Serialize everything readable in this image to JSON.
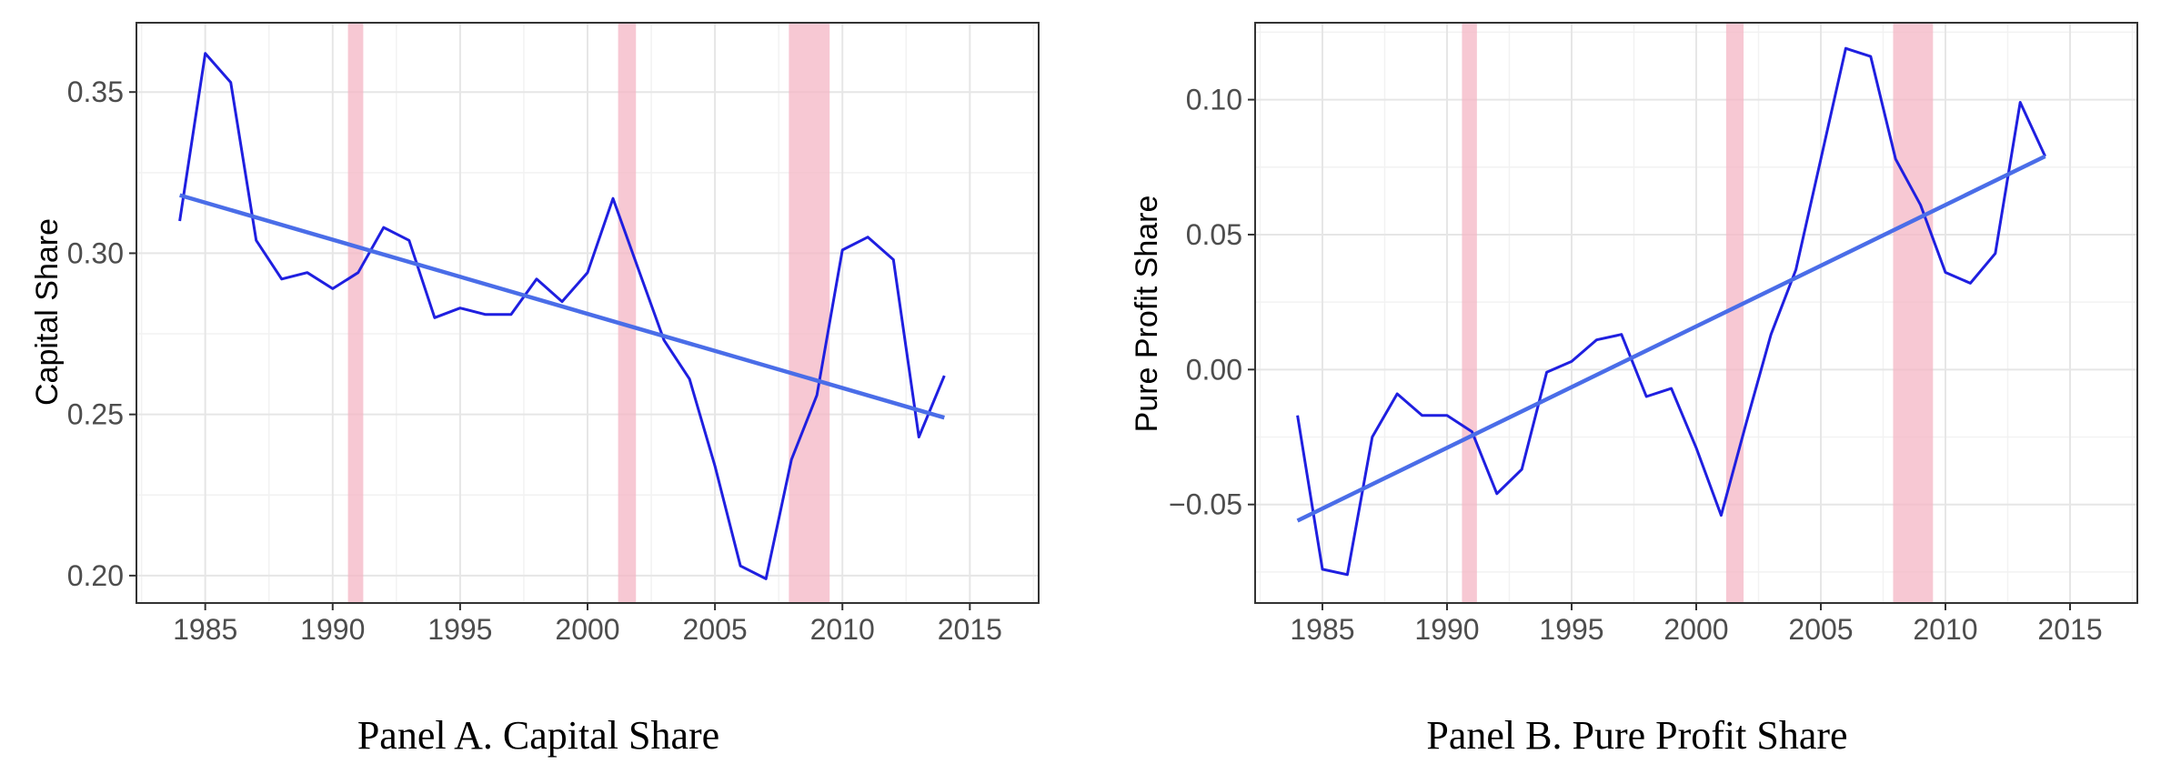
{
  "chart_data": [
    {
      "type": "line",
      "caption": "Panel A. Capital Share",
      "ylabel": "Capital Share",
      "xlabel": "",
      "xlim": [
        1982.3,
        2017.7
      ],
      "ylim": [
        0.1915,
        0.3715
      ],
      "x_ticks": [
        1985,
        1990,
        1995,
        2000,
        2005,
        2010,
        2015
      ],
      "x_tick_labels": [
        "1985",
        "1990",
        "1995",
        "2000",
        "2005",
        "2010",
        "2015"
      ],
      "y_ticks": [
        0.2,
        0.25,
        0.3,
        0.35
      ],
      "y_tick_labels": [
        "0.20",
        "0.25",
        "0.30",
        "0.35"
      ],
      "grid": true,
      "legend": "none",
      "recession_bands": [
        [
          1990.6,
          1991.2
        ],
        [
          2001.2,
          2001.9
        ],
        [
          2007.9,
          2009.5
        ]
      ],
      "series": [
        {
          "x": [
            1984,
            1985,
            1986,
            1987,
            1988,
            1989,
            1990,
            1991,
            1992,
            1993,
            1994,
            1995,
            1996,
            1997,
            1998,
            1999,
            2000,
            2001,
            2002,
            2003,
            2004,
            2005,
            2006,
            2007,
            2008,
            2009,
            2010,
            2011,
            2012,
            2013,
            2014
          ],
          "values": [
            0.31,
            0.362,
            0.353,
            0.304,
            0.292,
            0.294,
            0.289,
            0.294,
            0.308,
            0.304,
            0.28,
            0.283,
            0.281,
            0.281,
            0.292,
            0.285,
            0.294,
            0.317,
            0.295,
            0.273,
            0.261,
            0.234,
            0.203,
            0.199,
            0.236,
            0.256,
            0.301,
            0.305,
            0.298,
            0.243,
            0.262
          ]
        }
      ],
      "trend": {
        "x": [
          1984,
          2014
        ],
        "values": [
          0.318,
          0.249
        ]
      },
      "colors": {
        "series": "#1f1fe0",
        "trend": "#4a6de8",
        "band": "#f4b6c4",
        "grid": "#e6e6e6",
        "frame": "#333333"
      }
    },
    {
      "type": "line",
      "caption": "Panel B. Pure Profit Share",
      "ylabel": "Pure Profit Share",
      "xlabel": "",
      "xlim": [
        1982.3,
        2017.7
      ],
      "ylim": [
        -0.0865,
        0.1285
      ],
      "x_ticks": [
        1985,
        1990,
        1995,
        2000,
        2005,
        2010,
        2015
      ],
      "x_tick_labels": [
        "1985",
        "1990",
        "1995",
        "2000",
        "2005",
        "2010",
        "2015"
      ],
      "y_ticks": [
        -0.05,
        0.0,
        0.05,
        0.1
      ],
      "y_tick_labels": [
        "−0.05",
        "0.00",
        "0.05",
        "0.10"
      ],
      "grid": true,
      "legend": "none",
      "recession_bands": [
        [
          1990.6,
          1991.2
        ],
        [
          2001.2,
          2001.9
        ],
        [
          2007.9,
          2009.5
        ]
      ],
      "series": [
        {
          "x": [
            1984,
            1985,
            1986,
            1987,
            1988,
            1989,
            1990,
            1991,
            1992,
            1993,
            1994,
            1995,
            1996,
            1997,
            1998,
            1999,
            2000,
            2001,
            2002,
            2003,
            2004,
            2005,
            2006,
            2007,
            2008,
            2009,
            2010,
            2011,
            2012,
            2013,
            2014
          ],
          "values": [
            -0.017,
            -0.074,
            -0.076,
            -0.025,
            -0.009,
            -0.017,
            -0.017,
            -0.023,
            -0.046,
            -0.037,
            -0.001,
            0.003,
            0.011,
            0.013,
            -0.01,
            -0.007,
            -0.029,
            -0.054,
            -0.02,
            0.013,
            0.037,
            0.078,
            0.119,
            0.116,
            0.078,
            0.061,
            0.036,
            0.032,
            0.043,
            0.099,
            0.079
          ]
        }
      ],
      "trend": {
        "x": [
          1984,
          2014
        ],
        "values": [
          -0.056,
          0.079
        ]
      },
      "colors": {
        "series": "#1f1fe0",
        "trend": "#4a6de8",
        "band": "#f4b6c4",
        "grid": "#e6e6e6",
        "frame": "#333333"
      }
    }
  ]
}
